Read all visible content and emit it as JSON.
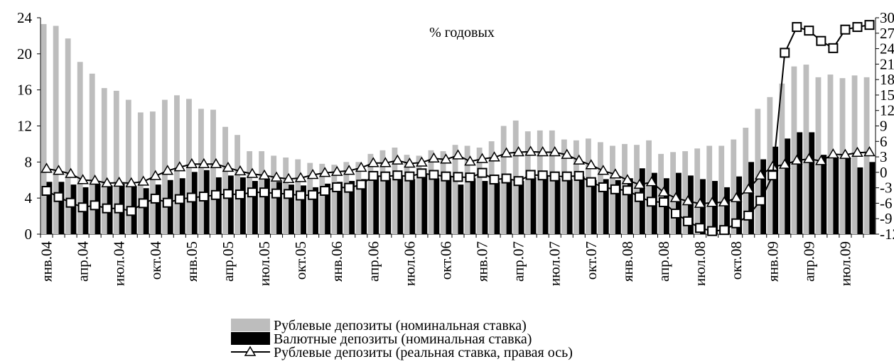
{
  "chart_data": {
    "type": "bar-line",
    "annotation": "% годовых",
    "categories": [
      "янв.04",
      null,
      null,
      "апр.04",
      null,
      null,
      "июл.04",
      null,
      null,
      "окт.04",
      null,
      null,
      "янв.05",
      null,
      null,
      "апр.05",
      null,
      null,
      "июл.05",
      null,
      null,
      "окт.05",
      null,
      null,
      "янв.06",
      null,
      null,
      "апр.06",
      null,
      null,
      "июл.06",
      null,
      null,
      "окт.06",
      null,
      null,
      "янв.07",
      null,
      null,
      "апр.07",
      null,
      null,
      "июл.07",
      null,
      null,
      "окт.07",
      null,
      null,
      "янв.08",
      null,
      null,
      "апр.08",
      null,
      null,
      "июл.08",
      null,
      null,
      "окт.08",
      null,
      null,
      "янв.09",
      null,
      null,
      "апр.09",
      null,
      null,
      "июл.09",
      null,
      null
    ],
    "series": [
      {
        "name": "Рублевые депозиты (номинальная ставка)",
        "kind": "bar",
        "color": "#bdbdbd",
        "values": [
          23.3,
          23.1,
          21.7,
          19.1,
          17.8,
          16.2,
          15.9,
          14.9,
          13.5,
          13.6,
          14.9,
          15.4,
          15.0,
          13.9,
          13.8,
          11.9,
          11.0,
          9.2,
          9.2,
          8.7,
          8.5,
          8.3,
          7.9,
          7.8,
          7.7,
          8.0,
          8.0,
          8.9,
          9.3,
          9.6,
          8.8,
          8.7,
          9.3,
          9.2,
          9.9,
          9.8,
          9.6,
          10.3,
          12.0,
          12.6,
          11.4,
          11.5,
          11.5,
          10.5,
          10.4,
          10.6,
          10.2,
          9.8,
          10.0,
          9.9,
          10.4,
          8.9,
          9.1,
          9.2,
          9.5,
          9.8,
          9.8,
          10.5,
          11.8,
          13.9,
          15.2,
          16.7,
          18.6,
          18.8,
          17.4,
          17.7,
          17.3,
          17.6,
          17.4
        ]
      },
      {
        "name": "Валютные депозиты (номинальная ставка)",
        "kind": "bar",
        "color": "#000000",
        "values": [
          5.8,
          5.8,
          5.5,
          5.2,
          5.5,
          5.4,
          5.6,
          5.3,
          5.1,
          5.5,
          6.0,
          6.2,
          6.9,
          7.1,
          6.3,
          6.5,
          6.3,
          5.9,
          6.1,
          5.8,
          5.5,
          5.4,
          5.2,
          5.6,
          5.8,
          5.9,
          6.1,
          6.5,
          6.2,
          6.5,
          6.1,
          6.6,
          6.2,
          6.5,
          5.5,
          6.2,
          5.9,
          5.8,
          6.1,
          5.9,
          6.3,
          6.4,
          6.2,
          6.1,
          6.4,
          6.0,
          6.1,
          6.0,
          6.2,
          7.3,
          6.8,
          6.2,
          6.8,
          6.5,
          6.1,
          5.9,
          5.2,
          6.4,
          8.0,
          8.3,
          9.7,
          10.6,
          11.3,
          11.3,
          8.8,
          8.6,
          8.5,
          7.4,
          8.0
        ]
      },
      {
        "name": "Рублевые депозиты (реальная ставка, правая ось)",
        "kind": "line",
        "marker": "triangle",
        "axis": "y2",
        "color": "#000000",
        "values": [
          0.7,
          0.3,
          -0.3,
          -1.5,
          -1.6,
          -2.1,
          -2.0,
          -2.1,
          -1.8,
          -0.7,
          0.3,
          1.0,
          1.6,
          1.6,
          1.6,
          0.9,
          0.2,
          -0.3,
          -0.6,
          -1.0,
          -1.3,
          -1.1,
          -0.5,
          -0.1,
          0.1,
          0.3,
          0.9,
          1.8,
          1.8,
          2.3,
          1.7,
          1.9,
          2.7,
          2.5,
          3.3,
          2.1,
          2.6,
          2.9,
          3.7,
          3.9,
          4.0,
          3.9,
          3.9,
          3.4,
          2.3,
          1.4,
          0.3,
          -0.4,
          -1.5,
          -2.4,
          -1.9,
          -3.9,
          -5.0,
          -5.6,
          -6.1,
          -5.9,
          -5.8,
          -5.0,
          -3.3,
          -0.6,
          1.1,
          1.5,
          2.3,
          2.6,
          2.2,
          3.5,
          3.4,
          3.8,
          3.9
        ]
      },
      {
        "kind": "line",
        "marker": "square",
        "axis": "y2",
        "color": "#000000",
        "values": [
          -3.6,
          -4.8,
          -5.9,
          -6.8,
          -6.4,
          -7.0,
          -7.0,
          -7.5,
          -6.0,
          -5.1,
          -5.9,
          -5.2,
          -4.9,
          -4.7,
          -4.4,
          -4.2,
          -4.3,
          -3.9,
          -3.9,
          -4.1,
          -4.2,
          -4.5,
          -4.4,
          -3.6,
          -2.9,
          -3.0,
          -2.4,
          -0.7,
          -0.8,
          -0.6,
          -0.8,
          -0.2,
          -0.5,
          -0.8,
          -0.9,
          -1.0,
          -0.1,
          -1.4,
          -1.2,
          -1.7,
          -0.5,
          -0.6,
          -0.8,
          -0.8,
          -0.7,
          -1.9,
          -2.9,
          -3.3,
          -3.5,
          -4.8,
          -5.7,
          -5.8,
          -8.0,
          -9.5,
          -10.8,
          -11.4,
          -11.2,
          -9.9,
          -8.4,
          -5.5,
          -0.6,
          23.2,
          28.2,
          27.5,
          25.5,
          24.1,
          27.7,
          28.2,
          28.6
        ]
      }
    ],
    "ylim": [
      0,
      24
    ],
    "yticks": [
      0,
      4,
      8,
      12,
      16,
      20,
      24
    ],
    "y2lim": [
      -12,
      30
    ],
    "y2ticks": [
      -12,
      -9,
      -6,
      -3,
      0,
      3,
      6,
      9,
      12,
      15,
      18,
      21,
      24,
      27,
      30
    ]
  }
}
